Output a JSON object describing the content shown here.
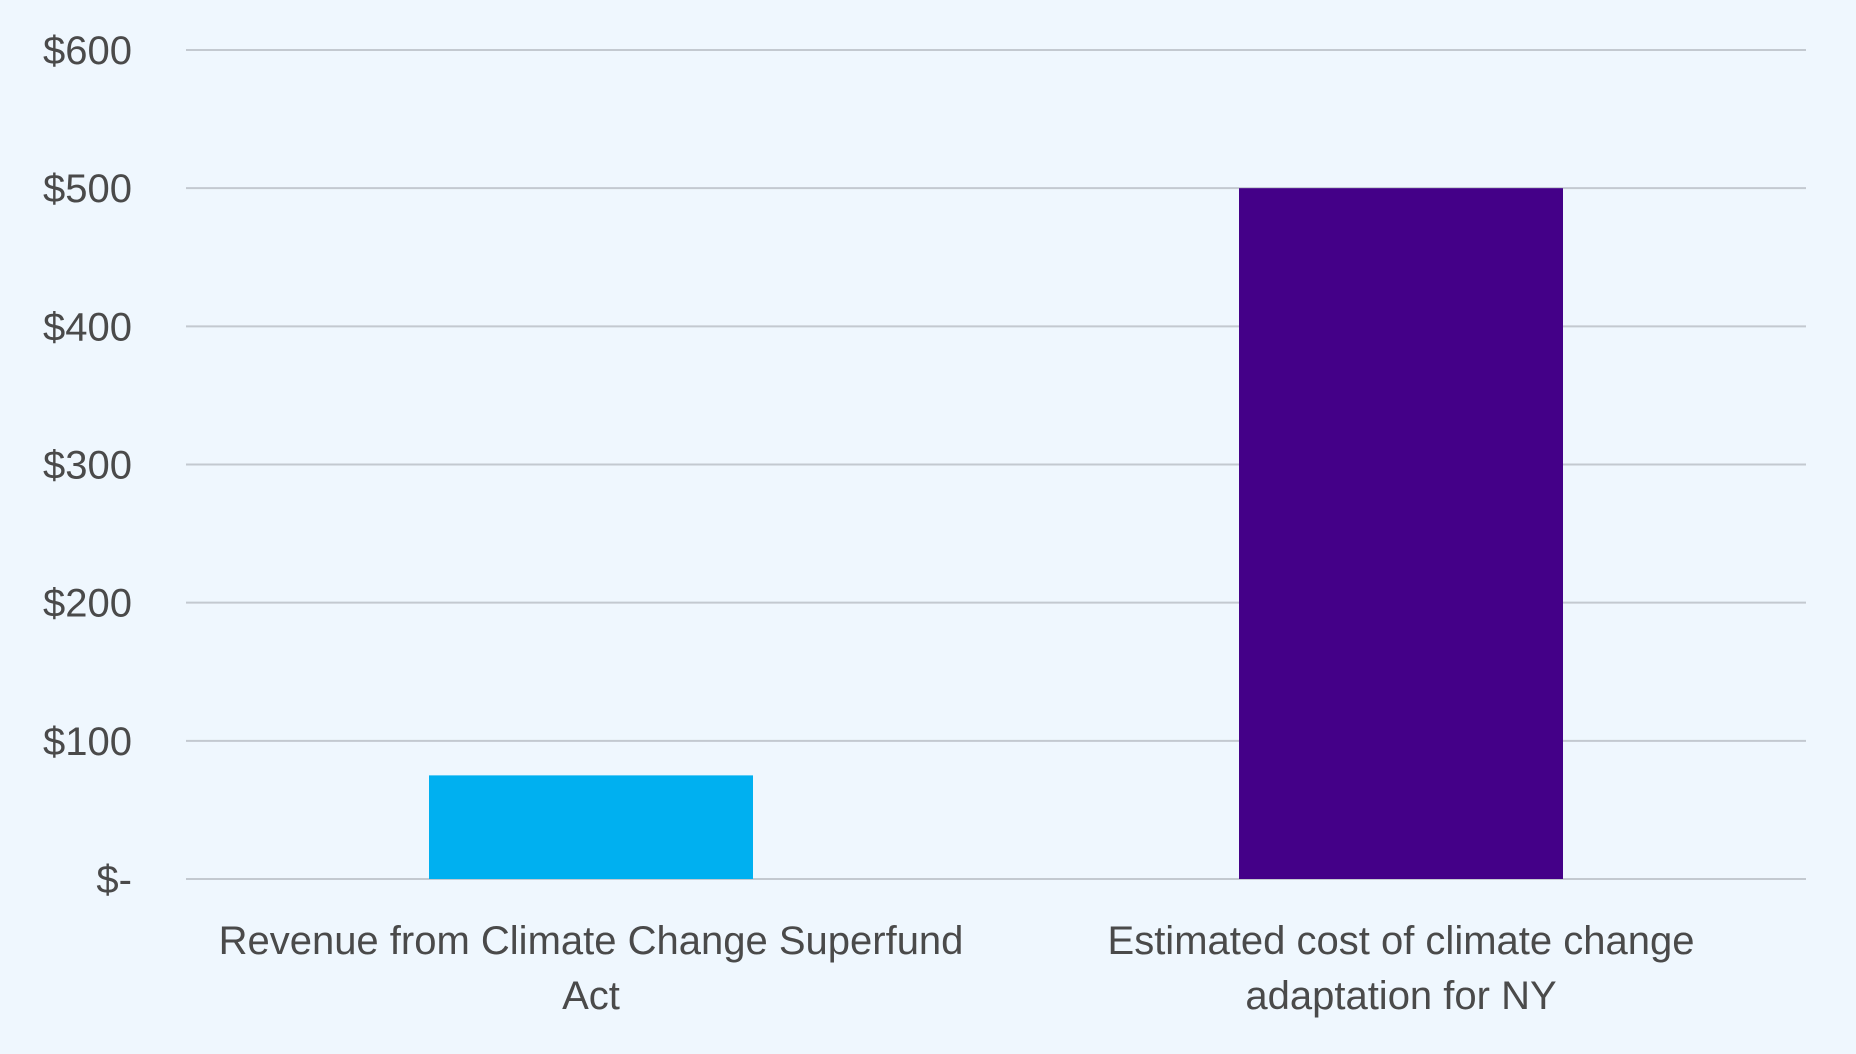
{
  "chart_data": {
    "type": "bar",
    "categories": [
      [
        "Revenue from Climate Change Superfund",
        "Act"
      ],
      [
        "Estimated cost of climate change",
        "adaptation for NY"
      ]
    ],
    "values": [
      75,
      500
    ],
    "bar_colors": [
      "#00b0f0",
      "#440088"
    ],
    "ylim": [
      0,
      600
    ],
    "yticks": [
      0,
      100,
      200,
      300,
      400,
      500,
      600
    ],
    "ytick_labels": [
      "$-",
      "$100",
      "$200",
      "$300",
      "$400",
      "$500",
      "$600"
    ],
    "grid": true,
    "grid_color": "#c3c9d0",
    "background": "#eff7fe",
    "title": "",
    "xlabel": "",
    "ylabel": ""
  }
}
